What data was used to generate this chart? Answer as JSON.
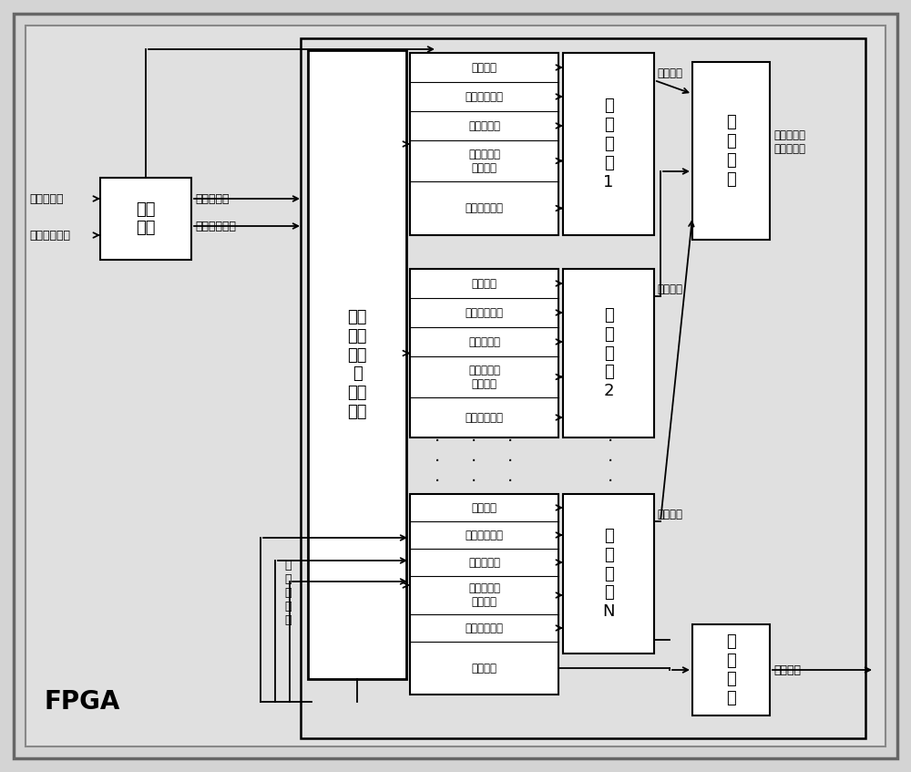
{
  "fig_width": 10.0,
  "fig_height": 8.47,
  "bg_color": "#d4d4d4",
  "box_fc": "#ffffff",
  "box_ec": "#000000",
  "fpga_label": "FPGA",
  "ctrl_box_label": [
    "控制",
    "方案",
    "选择",
    "及",
    "数据",
    "分配"
  ],
  "dr_label": [
    "数据",
    "接收"
  ],
  "sync_label": [
    "同",
    "步",
    "模",
    "块"
  ],
  "do_label": [
    "数",
    "据",
    "输",
    "出"
  ],
  "cm1_label": [
    "计",
    "算",
    "模",
    "块",
    "1"
  ],
  "cm2_label": [
    "计",
    "算",
    "模",
    "块",
    "2"
  ],
  "cmN_label": [
    "计",
    "算",
    "模",
    "块",
    "N"
  ],
  "items1": [
    "使能信号",
    "模型选择数据",
    "交通流数据",
    "可变显示牌\n显示速度",
    "匝口控制方案"
  ],
  "items2": [
    "使能信号",
    "模型选择数据",
    "交通流数据",
    "可变显示牌\n显示速度",
    "匝口控制方案"
  ],
  "items3": [
    "使能信号",
    "模型选择数据",
    "交通流数据",
    "可变显示牌\n显示速度",
    "匝口控制方案"
  ],
  "item_last": "控制方案",
  "in_left1": "交通流数据",
  "in_left2": "模型选择数据",
  "out_dr1": "交通流数据",
  "out_dr2": "模型选择数据",
  "sync_out": "所有计算模\n块计算结束",
  "ctrl_out": "控制方案",
  "calc_end": "计算结束",
  "jtl_label": [
    "交",
    "通",
    "流",
    "数",
    "据"
  ]
}
